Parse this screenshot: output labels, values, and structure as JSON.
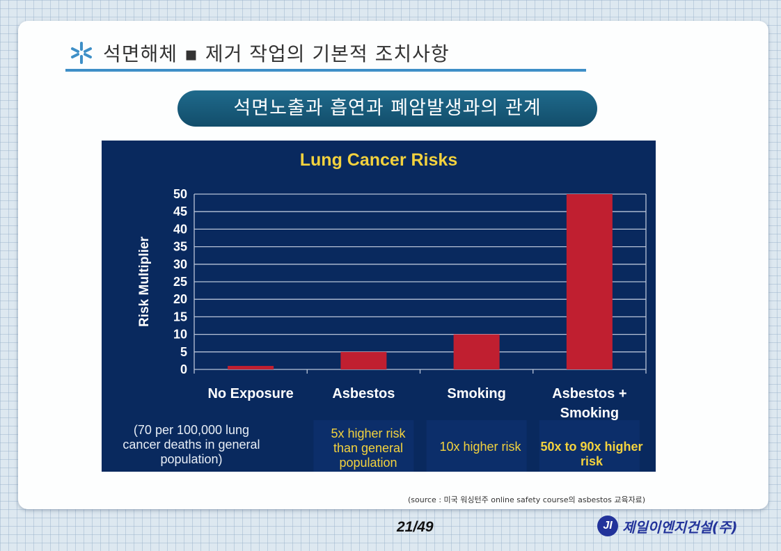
{
  "slide": {
    "title": "석면해체 ▪ 제거 작업의 기본적 조치사항",
    "subtitle": "석면노출과 흡연과 폐암발생과의 관계",
    "source": "(source : 미국 워싱턴주  online safety course의 asbestos 교육자료)",
    "page": "21/49",
    "company": "제일이엔지건설(주)",
    "logo_letters": "JI"
  },
  "colors": {
    "panel": "#09295e",
    "bar": "#c01f30",
    "title": "#f3d23e",
    "accent_line": "#3e8fc7",
    "pill": "#1a5e80"
  },
  "chart_data": {
    "type": "bar",
    "title": "Lung Cancer Risks",
    "xlabel": "",
    "ylabel": "Risk Multiplier",
    "ylim": [
      0,
      50
    ],
    "yticks": [
      0,
      5,
      10,
      15,
      20,
      25,
      30,
      35,
      40,
      45,
      50
    ],
    "grid": true,
    "categories": [
      [
        "No Exposure"
      ],
      [
        "Asbestos"
      ],
      [
        "Smoking"
      ],
      [
        "Asbestos +",
        "Smoking"
      ]
    ],
    "values": [
      1,
      5,
      10,
      50
    ],
    "notes": [
      "(70 per 100,000 lung cancer deaths in general population)",
      "5x higher risk than general population",
      "10x higher risk",
      "50x to 90x higher risk"
    ]
  }
}
